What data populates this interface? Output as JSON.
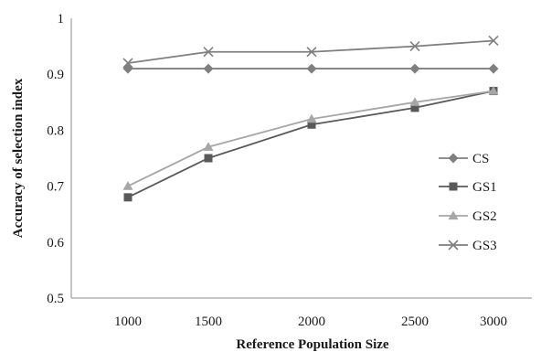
{
  "chart_data": {
    "type": "line",
    "title": "",
    "xlabel": "Reference Population Size",
    "ylabel": "Accuracy of selection index",
    "categories": [
      "1000",
      "1500",
      "2000",
      "2500",
      "3000"
    ],
    "ylim": [
      0.5,
      1
    ],
    "yticks": [
      "0.5",
      "0.6",
      "0.7",
      "0.8",
      "0.9",
      "1"
    ],
    "grid": false,
    "legend_position": "right",
    "series": [
      {
        "name": "CS",
        "values": [
          0.91,
          0.91,
          0.91,
          0.91,
          0.91
        ],
        "color": "#7f7f7f",
        "marker": "diamond"
      },
      {
        "name": "GS1",
        "values": [
          0.68,
          0.75,
          0.81,
          0.84,
          0.87
        ],
        "color": "#595959",
        "marker": "square"
      },
      {
        "name": "GS2",
        "values": [
          0.7,
          0.77,
          0.82,
          0.85,
          0.87
        ],
        "color": "#a6a6a6",
        "marker": "triangle"
      },
      {
        "name": "GS3",
        "values": [
          0.92,
          0.94,
          0.94,
          0.95,
          0.96
        ],
        "color": "#7f7f7f",
        "marker": "x"
      }
    ]
  }
}
